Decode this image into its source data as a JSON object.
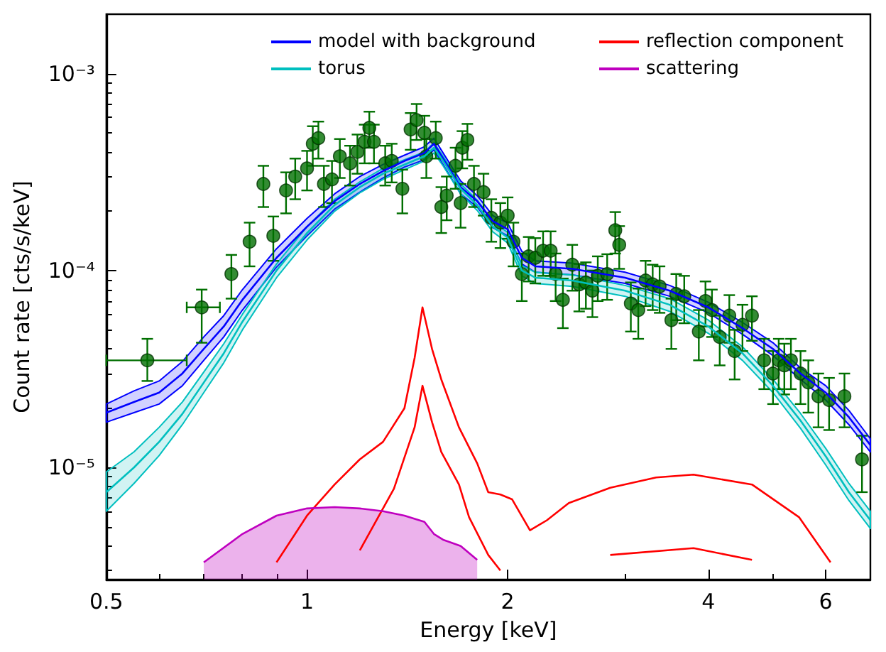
{
  "chart_data": {
    "type": "line",
    "xlabel": "Energy [keV]",
    "ylabel": "Count rate [cts/s/keV]",
    "log": "xy",
    "legend": "top right",
    "xlim": [
      0.5,
      7
    ],
    "xticks": [
      0.5,
      1,
      2,
      4,
      6
    ],
    "ylim": [
      2.7e-06,
      0.002
    ],
    "yticks": [
      {
        "value": 1e-05,
        "label": "10⁻⁵"
      },
      {
        "value": 0.0001,
        "label": "10⁻⁴"
      },
      {
        "value": 0.001,
        "label": "10⁻³"
      }
    ],
    "x": [
      0.5,
      0.55,
      0.6,
      0.65,
      0.7,
      0.75,
      0.8,
      0.9,
      1.0,
      1.1,
      1.2,
      1.3,
      1.4,
      1.5,
      1.55,
      1.6,
      1.7,
      1.8,
      1.9,
      2.0,
      2.1,
      2.2,
      2.5,
      3.0,
      3.5,
      4.0,
      4.5,
      5.0,
      5.5,
      6.0,
      6.5,
      7.0
    ],
    "series": [
      {
        "name": "model with background",
        "type": "line",
        "color": "#0000ff",
        "values": [
          1.9e-05,
          2.15e-05,
          2.4e-05,
          3e-05,
          4e-05,
          5.2e-05,
          7.1e-05,
          0.000116,
          0.000167,
          0.000225,
          0.000275,
          0.00032,
          0.00036,
          0.000395,
          0.00044,
          0.00037,
          0.000265,
          0.000225,
          0.000178,
          0.000162,
          0.000116,
          0.000105,
          0.000102,
          9.2e-05,
          7.9e-05,
          6.5e-05,
          5.1e-05,
          4e-05,
          3e-05,
          2.4e-05,
          1.8e-05,
          1.3e-05
        ],
        "lower": [
          1.7e-05,
          1.9e-05,
          2.1e-05,
          2.6e-05,
          3.5e-05,
          4.6e-05,
          6.3e-05,
          0.000104,
          0.00015,
          0.000205,
          0.00025,
          0.000295,
          0.000335,
          0.000365,
          0.00041,
          0.000345,
          0.000245,
          0.00021,
          0.000165,
          0.00015,
          0.000108,
          9.8e-05,
          9.5e-05,
          8.6e-05,
          7.4e-05,
          6.1e-05,
          4.75e-05,
          3.7e-05,
          2.8e-05,
          2.2e-05,
          1.65e-05,
          1.2e-05
        ],
        "upper": [
          2.1e-05,
          2.45e-05,
          2.75e-05,
          3.45e-05,
          4.6e-05,
          5.9e-05,
          8e-05,
          0.000129,
          0.000184,
          0.000245,
          0.0003,
          0.000345,
          0.000385,
          0.000425,
          0.00047,
          0.000395,
          0.000285,
          0.00024,
          0.00019,
          0.000174,
          0.000125,
          0.000112,
          0.000109,
          9.8e-05,
          8.4e-05,
          6.9e-05,
          5.45e-05,
          4.3e-05,
          3.2e-05,
          2.6e-05,
          1.95e-05,
          1.4e-05
        ]
      },
      {
        "name": "torus",
        "type": "line",
        "color": "#00bfbf",
        "values": [
          7.5e-06,
          1e-05,
          1.35e-05,
          1.87e-05,
          2.7e-05,
          3.8e-05,
          5.5e-05,
          0.0001,
          0.000155,
          0.000215,
          0.000265,
          0.00031,
          0.000345,
          0.00038,
          0.00042,
          0.00036,
          0.00026,
          0.000215,
          0.000167,
          0.000147,
          0.0001,
          9.2e-05,
          8.9e-05,
          7.9e-05,
          6.7e-05,
          5.2e-05,
          3.8e-05,
          2.6e-05,
          1.73e-05,
          1.14e-05,
          7.5e-06,
          5.4e-06
        ],
        "lower": [
          6e-06,
          8.3e-06,
          1.15e-05,
          1.65e-05,
          2.4e-05,
          3.4e-05,
          5e-05,
          9.2e-05,
          0.000143,
          0.0002,
          0.000248,
          0.00029,
          0.000325,
          0.00036,
          0.000395,
          0.00034,
          0.000245,
          0.000202,
          0.000157,
          0.000138,
          9.4e-05,
          8.6e-05,
          8.3e-05,
          7.4e-05,
          6.2e-05,
          4.8e-05,
          3.5e-05,
          2.4e-05,
          1.58e-05,
          1.03e-05,
          6.8e-06,
          4.9e-06
        ],
        "upper": [
          9.5e-06,
          1.2e-05,
          1.6e-05,
          2.15e-05,
          3.05e-05,
          4.25e-05,
          6e-05,
          0.000108,
          0.000167,
          0.00023,
          0.000282,
          0.00033,
          0.000365,
          0.0004,
          0.000445,
          0.00038,
          0.000275,
          0.000228,
          0.000177,
          0.000156,
          0.000106,
          9.8e-05,
          9.5e-05,
          8.4e-05,
          7.2e-05,
          5.6e-05,
          4.1e-05,
          2.8e-05,
          1.88e-05,
          1.25e-05,
          8.3e-06,
          6e-06
        ]
      },
      {
        "name": "reflection component",
        "type": "line",
        "color": "#ff0000",
        "x": [
          0.9,
          1.0,
          1.1,
          1.2,
          1.3,
          1.4,
          1.45,
          1.49,
          1.54,
          1.59,
          1.69,
          1.8,
          1.87,
          1.95,
          2.03,
          2.16,
          2.29,
          2.47,
          2.85,
          3.34,
          3.8,
          4.65,
          5.47,
          6.1
        ],
        "values": [
          3.3e-06,
          5.7e-06,
          8.2e-06,
          1.1e-05,
          1.35e-05,
          2e-05,
          3.6e-05,
          6.5e-05,
          4e-05,
          2.8e-05,
          1.6e-05,
          1.05e-05,
          7.5e-06,
          7.3e-06,
          6.9e-06,
          4.8e-06,
          5.4e-06,
          6.6e-06,
          7.9e-06,
          8.9e-06,
          9.2e-06,
          8.2e-06,
          5.6e-06,
          3.3e-06
        ]
      },
      {
        "type": "line",
        "color": "#ff0000",
        "x": [
          1.2,
          1.35,
          1.45,
          1.49,
          1.54,
          1.59,
          1.69,
          1.75,
          1.87,
          1.95
        ],
        "values": [
          3.8e-06,
          7.8e-06,
          1.6e-05,
          2.6e-05,
          1.7e-05,
          1.2e-05,
          8.2e-06,
          5.6e-06,
          3.6e-06,
          3e-06
        ]
      },
      {
        "type": "line",
        "color": "#ff0000",
        "x": [
          2.85,
          3.8,
          4.65
        ],
        "values": [
          3.6e-06,
          3.9e-06,
          3.4e-06
        ]
      },
      {
        "name": "scattering",
        "type": "area",
        "color": "#bf00bf",
        "x": [
          0.7,
          0.8,
          0.9,
          1.0,
          1.1,
          1.2,
          1.3,
          1.4,
          1.5,
          1.55,
          1.6,
          1.7,
          1.8
        ],
        "values": [
          3.3e-06,
          4.6e-06,
          5.7e-06,
          6.2e-06,
          6.3e-06,
          6.2e-06,
          6e-06,
          5.7e-06,
          5.3e-06,
          4.6e-06,
          4.3e-06,
          4e-06,
          3.4e-06
        ]
      },
      {
        "type": "scatter",
        "color": "#006f00",
        "marker": "circle",
        "x": [
          0.576,
          0.695,
          0.77,
          0.82,
          0.86,
          0.89,
          0.93,
          0.96,
          1.0,
          1.02,
          1.04,
          1.06,
          1.09,
          1.12,
          1.16,
          1.19,
          1.22,
          1.24,
          1.26,
          1.31,
          1.34,
          1.39,
          1.43,
          1.46,
          1.5,
          1.51,
          1.56,
          1.59,
          1.62,
          1.67,
          1.7,
          1.71,
          1.74,
          1.78,
          1.84,
          1.89,
          1.95,
          2.0,
          2.04,
          2.1,
          2.15,
          2.2,
          2.26,
          2.32,
          2.36,
          2.42,
          2.5,
          2.56,
          2.62,
          2.68,
          2.73,
          2.82,
          2.9,
          2.94,
          3.06,
          3.14,
          3.22,
          3.3,
          3.38,
          3.52,
          3.58,
          3.68,
          3.87,
          3.96,
          4.05,
          4.16,
          4.3,
          4.38,
          4.5,
          4.65,
          4.85,
          5.0,
          5.1,
          5.2,
          5.32,
          5.5,
          5.65,
          5.85,
          6.07,
          6.4,
          6.8
        ],
        "values": [
          3.5e-05,
          6.5e-05,
          9.6e-05,
          0.00014,
          0.000275,
          0.00015,
          0.000255,
          0.0003,
          0.00033,
          0.00044,
          0.00047,
          0.000275,
          0.00029,
          0.00038,
          0.00035,
          0.0004,
          0.00045,
          0.00053,
          0.00045,
          0.00035,
          0.00036,
          0.00026,
          0.00052,
          0.00058,
          0.0005,
          0.00038,
          0.00047,
          0.00021,
          0.00024,
          0.00034,
          0.00022,
          0.00042,
          0.00046,
          0.000275,
          0.00025,
          0.000185,
          0.000175,
          0.00019,
          0.00014,
          9.6e-05,
          0.000118,
          0.000116,
          0.000126,
          0.000126,
          9.6e-05,
          7.1e-05,
          0.000107,
          8.5e-05,
          8.7e-05,
          7.9e-05,
          9.4e-05,
          9.6e-05,
          0.00016,
          0.000135,
          6.8e-05,
          6.3e-05,
          8.9e-05,
          8.5e-05,
          8.3e-05,
          5.6e-05,
          7.6e-05,
          7.4e-05,
          4.9e-05,
          7e-05,
          6.3e-05,
          4.6e-05,
          5.9e-05,
          3.9e-05,
          5.3e-05,
          5.9e-05,
          3.5e-05,
          3e-05,
          3.5e-05,
          3.3e-05,
          3.5e-05,
          3e-05,
          2.7e-05,
          2.3e-05,
          2.2e-05,
          2.3e-05,
          1.1e-05
        ],
        "errors": [
          [
            2.75e-05,
            4.5e-05
          ],
          [
            4.3e-05,
            8e-05
          ],
          2.4e-05,
          3.5e-05,
          6.5e-05,
          3.8e-05,
          6e-05,
          7e-05,
          7.5e-05,
          0.0001,
          0.0001,
          6.5e-05,
          7e-05,
          8.5e-05,
          8e-05,
          9e-05,
          0.0001,
          0.00011,
          0.0001,
          8e-05,
          8e-05,
          6.5e-05,
          0.00011,
          0.00012,
          0.00011,
          8.5e-05,
          0.0001,
          5.5e-05,
          6e-05,
          8e-05,
          5.5e-05,
          9e-05,
          9.5e-05,
          6.5e-05,
          6e-05,
          4.5e-05,
          4.5e-05,
          4.5e-05,
          3.5e-05,
          2.6e-05,
          3e-05,
          3e-05,
          3.2e-05,
          3.2e-05,
          2.6e-05,
          2e-05,
          2.8e-05,
          2.3e-05,
          2.3e-05,
          2.1e-05,
          2.4e-05,
          2.5e-05,
          3.8e-05,
          3.3e-05,
          1.9e-05,
          1.8e-05,
          2.3e-05,
          2.2e-05,
          2.2e-05,
          1.6e-05,
          2e-05,
          2e-05,
          1.4e-05,
          1.8e-05,
          1.7e-05,
          1.3e-05,
          1.6e-05,
          1.1e-05,
          1.4e-05,
          1.5e-05,
          1e-05,
          9e-06,
          1e-05,
          9.5e-06,
          1e-05,
          9e-06,
          8e-06,
          7e-06,
          6.5e-06,
          7e-06,
          3.5e-06
        ],
        "xerrors": [
          [
            0.5,
            0.66
          ],
          [
            0.66,
            0.74
          ],
          null,
          null,
          null,
          null,
          null,
          null,
          null,
          null,
          null,
          null,
          null,
          null,
          null,
          null,
          null,
          null,
          null,
          null,
          null,
          null,
          null,
          null,
          null,
          null,
          null,
          null,
          null,
          null,
          null,
          null,
          null,
          null,
          null,
          null,
          null,
          null,
          null,
          null,
          null,
          null,
          null,
          null,
          null,
          null,
          null,
          null,
          null,
          null,
          null,
          null,
          null,
          null,
          null,
          null,
          null,
          null,
          null,
          null,
          null,
          null,
          null,
          null,
          null,
          null,
          null,
          null,
          null,
          null,
          null,
          null,
          null,
          null,
          null,
          null,
          null,
          null,
          null,
          null,
          null
        ]
      }
    ]
  }
}
